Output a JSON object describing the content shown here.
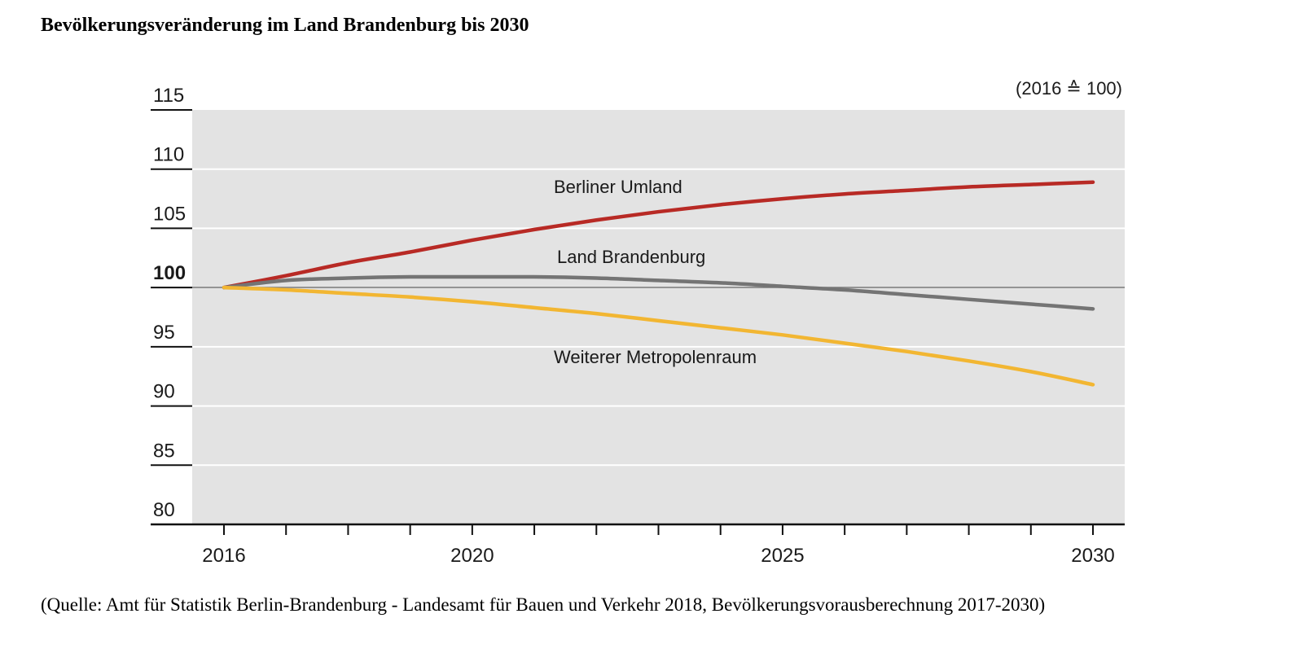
{
  "chart_data": {
    "type": "line",
    "title": "Bevölkerungsveränderung im Land Brandenburg bis 2030",
    "unit_note": "(2016 ≙ 100)",
    "xlabel": "",
    "ylabel": "",
    "xlim": [
      2016,
      2030
    ],
    "ylim": [
      80,
      115
    ],
    "x_ticks": [
      2016,
      2017,
      2018,
      2019,
      2020,
      2021,
      2022,
      2023,
      2024,
      2025,
      2026,
      2027,
      2028,
      2029,
      2030
    ],
    "x_tick_labels": [
      "2016",
      "2020",
      "2025",
      "2030"
    ],
    "y_tick_labels": [
      "115",
      "110",
      "105",
      "100",
      "95",
      "90",
      "85",
      "80"
    ],
    "reference_line": 100,
    "x": [
      2016,
      2017,
      2018,
      2019,
      2020,
      2021,
      2022,
      2023,
      2024,
      2025,
      2026,
      2027,
      2028,
      2029,
      2030
    ],
    "series": [
      {
        "name": "Berliner Umland",
        "color": "#b82a25",
        "values": [
          100.0,
          101.0,
          102.1,
          103.0,
          104.0,
          104.9,
          105.7,
          106.4,
          107.0,
          107.5,
          107.9,
          108.2,
          108.5,
          108.7,
          108.9
        ]
      },
      {
        "name": "Land Brandenburg",
        "color": "#747474",
        "values": [
          100.0,
          100.6,
          100.8,
          100.9,
          100.9,
          100.9,
          100.8,
          100.6,
          100.4,
          100.1,
          99.8,
          99.4,
          99.0,
          98.6,
          98.2
        ]
      },
      {
        "name": "Weiterer Metropolenraum",
        "color": "#f2b632",
        "values": [
          100.0,
          99.8,
          99.5,
          99.2,
          98.8,
          98.3,
          97.8,
          97.2,
          96.6,
          96.0,
          95.3,
          94.6,
          93.8,
          92.9,
          91.8
        ]
      }
    ]
  },
  "source_text": "(Quelle: Amt für Statistik Berlin-Brandenburg - Landesamt für Bauen und Verkehr 2018, Bevölkerungsvorausberechnung 2017-2030)"
}
